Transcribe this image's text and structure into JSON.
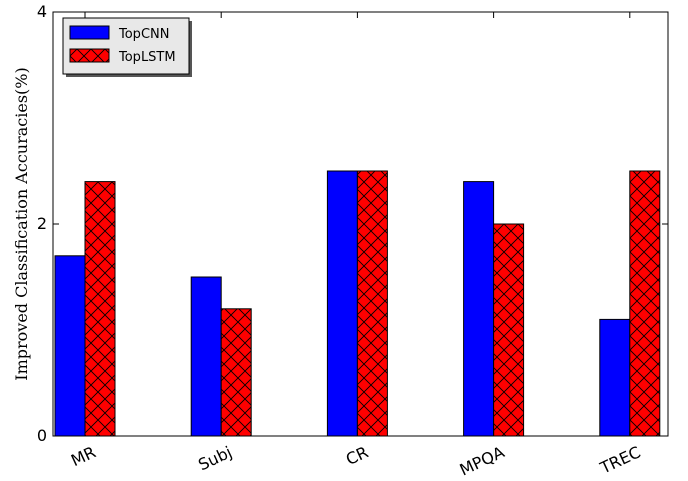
{
  "chart_data": {
    "type": "bar",
    "title": "",
    "xlabel": "",
    "ylabel": "Improved Classification Accuracies(%)",
    "categories": [
      "MR",
      "Subj",
      "CR",
      "MPQA",
      "TREC"
    ],
    "series": [
      {
        "name": "TopCNN",
        "values": [
          1.7,
          1.5,
          2.5,
          2.4,
          1.1
        ],
        "color": "#0000ff",
        "hatch": "none"
      },
      {
        "name": "TopLSTM",
        "values": [
          2.4,
          1.2,
          2.5,
          2.0,
          2.5
        ],
        "color": "#ff0000",
        "hatch": "cross"
      }
    ],
    "ylim": [
      0,
      4
    ],
    "yticks": [
      0,
      2,
      4
    ],
    "legend_position": "top-left",
    "grid": false
  }
}
